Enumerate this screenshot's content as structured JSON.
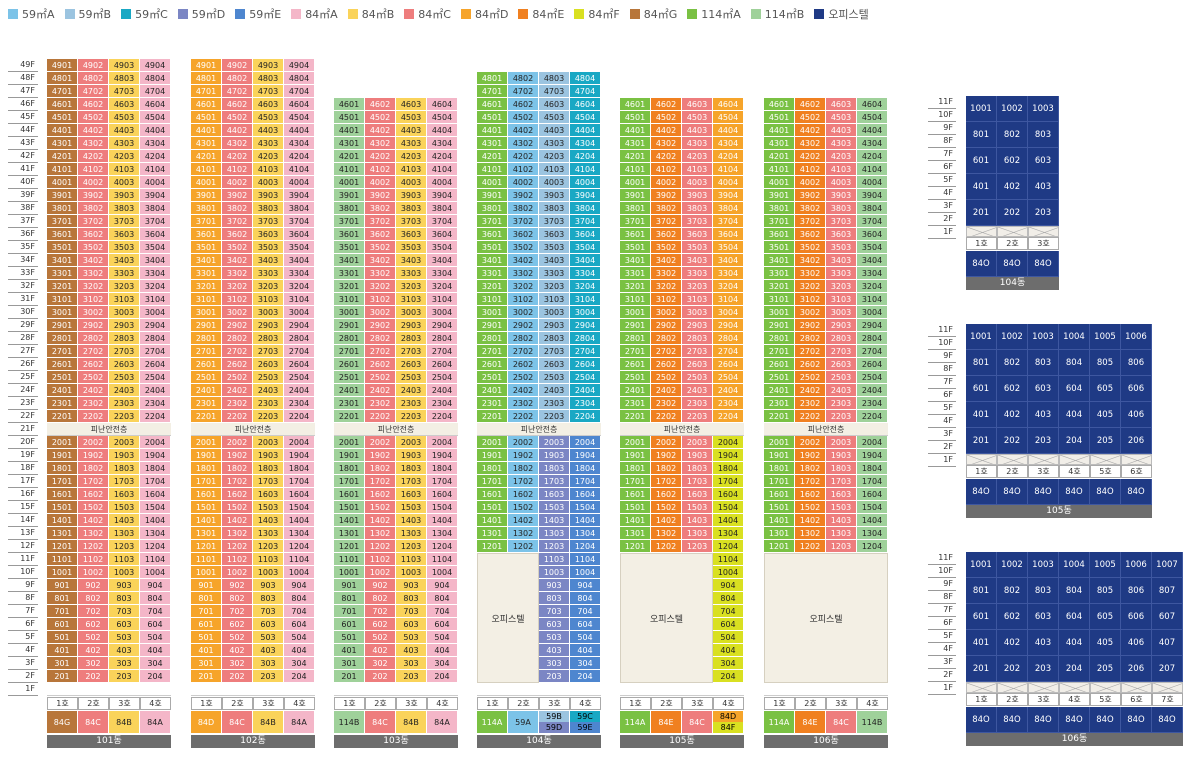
{
  "legend": [
    {
      "label": "59㎡A",
      "color": "#7cc3e8"
    },
    {
      "label": "59㎡B",
      "color": "#9bc4e0"
    },
    {
      "label": "59㎡C",
      "color": "#19a8c4"
    },
    {
      "label": "59㎡D",
      "color": "#7b86c4"
    },
    {
      "label": "59㎡E",
      "color": "#4e86cf"
    },
    {
      "label": "84㎡A",
      "color": "#f4b6c8"
    },
    {
      "label": "84㎡B",
      "color": "#fad35a"
    },
    {
      "label": "84㎡C",
      "color": "#ee7d7d"
    },
    {
      "label": "84㎡D",
      "color": "#f6a42a"
    },
    {
      "label": "84㎡E",
      "color": "#f08020"
    },
    {
      "label": "84㎡F",
      "color": "#d9e021"
    },
    {
      "label": "84㎡G",
      "color": "#b8763a"
    },
    {
      "label": "114㎡A",
      "color": "#7ac143"
    },
    {
      "label": "114㎡B",
      "color": "#9fd19a"
    },
    {
      "label": "오피스텔",
      "color": "#1f3a85"
    }
  ],
  "refuge_label": "피난안전층",
  "office_label": "오피스텔",
  "lines": [
    "1호",
    "2호",
    "3호",
    "4호",
    "5호",
    "6호",
    "7호"
  ],
  "towers": [
    {
      "name": "101동",
      "top": 49,
      "hasRefuge": true,
      "types": [
        "84G",
        "84C",
        "84B",
        "84A"
      ],
      "colsHigh": [
        "#b8763a",
        "#ee7d7d",
        "#fad35a",
        "#f4b6c8"
      ],
      "colsLow": [
        "#b8763a",
        "#ee7d7d",
        "#fad35a",
        "#f4b6c8"
      ]
    },
    {
      "name": "102동",
      "top": 49,
      "hasRefuge": true,
      "types": [
        "84D",
        "84C",
        "84B",
        "84A"
      ],
      "colsHigh": [
        "#f6a42a",
        "#ee7d7d",
        "#fad35a",
        "#f4b6c8"
      ],
      "colsLow": [
        "#f6a42a",
        "#ee7d7d",
        "#fad35a",
        "#f4b6c8"
      ]
    },
    {
      "name": "103동",
      "top": 46,
      "hasRefuge": true,
      "types": [
        "114B",
        "84C",
        "84B",
        "84A"
      ],
      "colsHigh": [
        "#9fd19a",
        "#ee7d7d",
        "#fad35a",
        "#f4b6c8"
      ],
      "colsLow": [
        "#9fd19a",
        "#ee7d7d",
        "#fad35a",
        "#f4b6c8"
      ]
    },
    {
      "name": "104동",
      "top": 48,
      "hasRefuge": true,
      "types": [
        "114A",
        "59A",
        "59B 59D",
        "59C 59E"
      ],
      "colsHigh": [
        "#7ac143",
        "#7cc3e8",
        "#9bc4e0",
        "#19a8c4"
      ],
      "colsLow": [
        "#7ac143",
        "#7cc3e8",
        "#7b86c4",
        "#4e86cf"
      ],
      "extra4901": true
    },
    {
      "name": "105동",
      "top": 46,
      "hasRefuge": true,
      "types": [
        "114A",
        "84E",
        "84C",
        "84D 84F"
      ],
      "colsHigh": [
        "#7ac143",
        "#f08020",
        "#ee7d7d",
        "#f6a42a"
      ],
      "colsLow": [
        "#7ac143",
        "#f08020",
        "#ee7d7d",
        "#d9e021"
      ]
    },
    {
      "name": "106동",
      "top": 46,
      "hasRefuge": true,
      "types": [
        "114A",
        "84E",
        "84C",
        "114B"
      ],
      "colsHigh": [
        "#7ac143",
        "#f08020",
        "#ee7d7d",
        "#9fd19a"
      ],
      "colsLow": [
        "#7ac143",
        "#f08020",
        "#ee7d7d",
        "#9fd19a"
      ]
    }
  ],
  "office_blocks": [
    {
      "name": "104동",
      "units": 3,
      "type_label": "84O",
      "rows": [
        "10",
        "8",
        "6",
        "4",
        "2"
      ]
    },
    {
      "name": "105동",
      "units": 6,
      "type_label": "84O",
      "rows": [
        "10",
        "8",
        "6",
        "4",
        "2"
      ]
    },
    {
      "name": "106동",
      "units": 7,
      "type_label": "84O",
      "rows": [
        "10",
        "8",
        "6",
        "4",
        "2"
      ]
    }
  ],
  "floors_office": [
    "11F",
    "10F",
    "9F",
    "8F",
    "7F",
    "6F",
    "5F",
    "4F",
    "3F",
    "2F",
    "1F"
  ]
}
